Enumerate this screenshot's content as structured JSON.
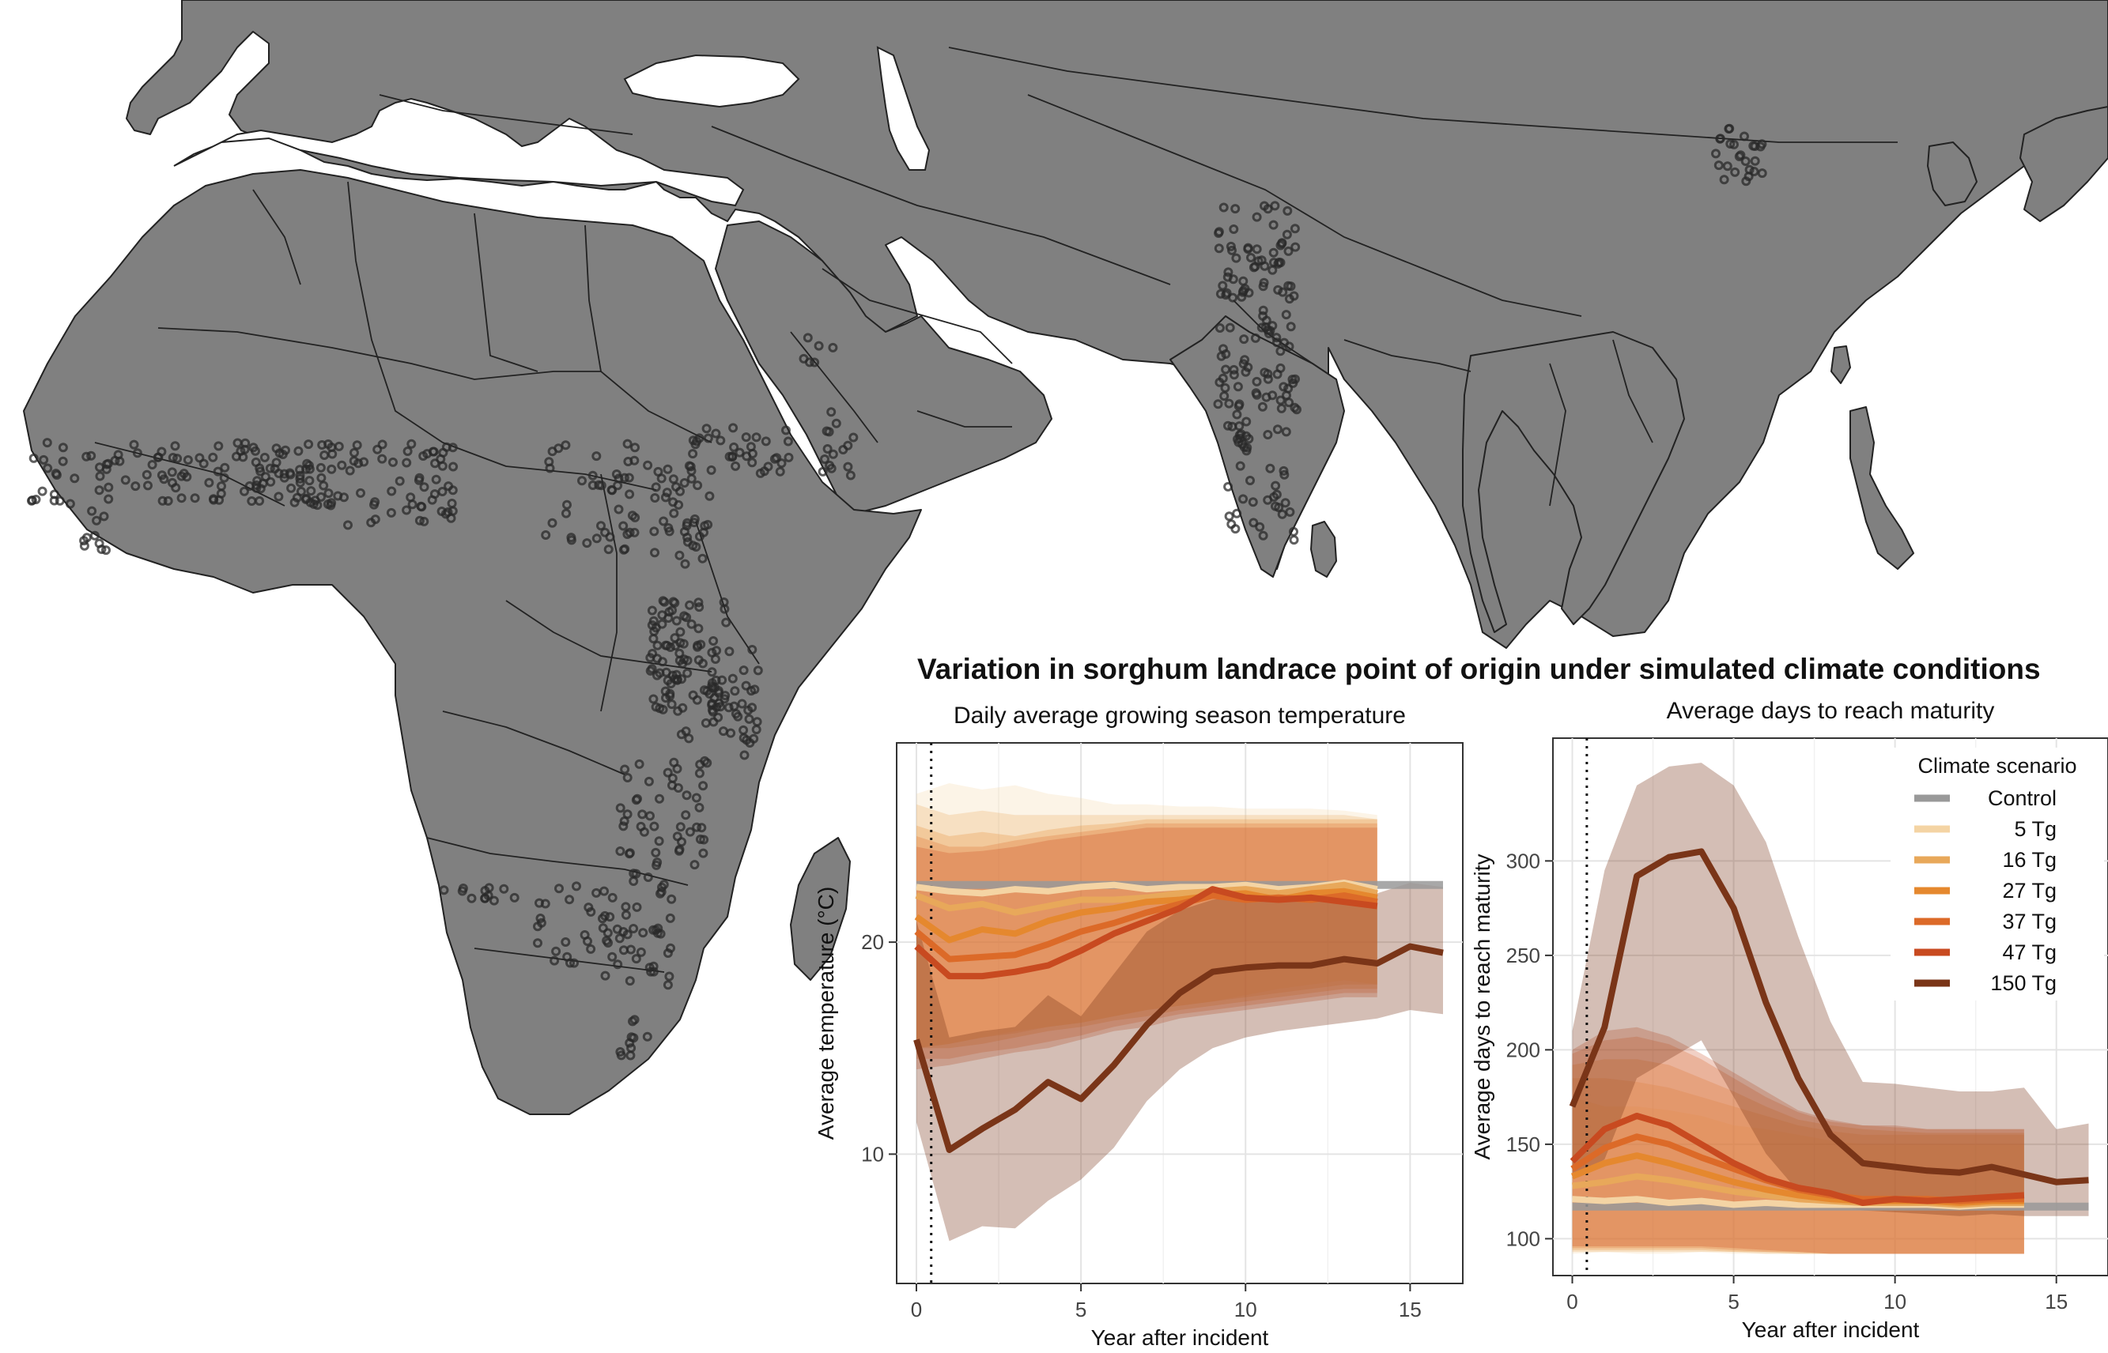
{
  "figure": {
    "title": "Variation in sorghum landrace point of origin under simulated climate conditions",
    "map": {
      "land_color": "#808080",
      "ocean_color": "#ffffff",
      "point_color": "#2a2a2a"
    }
  },
  "chart_data": [
    {
      "type": "line",
      "title": "Daily average growing season temperature",
      "xlabel": "Year after incident",
      "ylabel": "Average temperature (°C)",
      "xlim": [
        -0.6,
        16.6
      ],
      "ylim": [
        3.9,
        29.4
      ],
      "x_ticks": [
        0,
        5,
        10,
        15
      ],
      "y_ticks": [
        10,
        20
      ],
      "reference_line_x": 0.45,
      "grid": true,
      "series": [
        {
          "name": "Control",
          "color": "#999999",
          "x": [
            0,
            16
          ],
          "y": [
            22.7,
            22.7
          ],
          "lo": [
            22.5,
            22.5
          ],
          "hi": [
            23.0,
            23.0
          ]
        },
        {
          "name": "5 Tg",
          "color": "#f4d4a4",
          "x": [
            0,
            1,
            2,
            3,
            4,
            5,
            6,
            7,
            8,
            9,
            10,
            11,
            12,
            13,
            14
          ],
          "y": [
            22.6,
            22.4,
            22.3,
            22.5,
            22.4,
            22.6,
            22.7,
            22.5,
            22.6,
            22.6,
            22.7,
            22.5,
            22.6,
            22.8,
            22.5
          ],
          "lo": [
            15.0,
            15.2,
            15.5,
            15.8,
            16.0,
            16.2,
            16.5,
            16.8,
            17.0,
            17.2,
            17.5,
            17.8,
            18.0,
            18.2,
            18.0
          ],
          "hi": [
            27.0,
            27.5,
            27.2,
            27.4,
            27.0,
            26.8,
            26.5,
            26.5,
            26.4,
            26.4,
            26.3,
            26.3,
            26.3,
            26.2,
            26.0
          ]
        },
        {
          "name": "16 Tg",
          "color": "#e8a85a",
          "x": [
            0,
            1,
            2,
            3,
            4,
            5,
            6,
            7,
            8,
            9,
            10,
            11,
            12,
            13,
            14
          ],
          "y": [
            22.2,
            21.6,
            21.8,
            21.4,
            21.7,
            22.0,
            22.0,
            22.1,
            22.3,
            22.4,
            22.5,
            22.3,
            22.5,
            22.7,
            22.3
          ],
          "lo": [
            15.0,
            15.2,
            15.5,
            15.7,
            16.0,
            16.2,
            16.5,
            16.8,
            17.0,
            17.2,
            17.4,
            17.6,
            17.8,
            18.0,
            18.0
          ],
          "hi": [
            26.5,
            26.0,
            26.2,
            26.0,
            26.0,
            26.0,
            26.0,
            26.0,
            26.0,
            26.0,
            26.0,
            26.0,
            26.0,
            26.0,
            25.8
          ]
        },
        {
          "name": "27 Tg",
          "color": "#e5882e",
          "x": [
            0,
            1,
            2,
            3,
            4,
            5,
            6,
            7,
            8,
            9,
            10,
            11,
            12,
            13,
            14
          ],
          "y": [
            21.2,
            20.1,
            20.6,
            20.4,
            21.0,
            21.4,
            21.6,
            21.9,
            22.0,
            22.2,
            22.3,
            22.0,
            22.3,
            22.4,
            22.1
          ],
          "lo": [
            15.0,
            15.0,
            15.2,
            15.5,
            15.8,
            16.0,
            16.3,
            16.5,
            16.8,
            17.0,
            17.2,
            17.4,
            17.6,
            17.8,
            17.8
          ],
          "hi": [
            25.5,
            25.0,
            25.2,
            25.0,
            25.3,
            25.5,
            25.6,
            25.8,
            25.8,
            25.8,
            25.8,
            25.8,
            25.8,
            25.8,
            25.8
          ]
        },
        {
          "name": "37 Tg",
          "color": "#dc6a28",
          "x": [
            0,
            1,
            2,
            3,
            4,
            5,
            6,
            7,
            8,
            9,
            10,
            11,
            12,
            13,
            14
          ],
          "y": [
            20.5,
            19.2,
            19.3,
            19.4,
            19.9,
            20.5,
            20.9,
            21.4,
            21.8,
            22.2,
            22.0,
            22.1,
            22.0,
            22.2,
            21.9
          ],
          "lo": [
            14.5,
            14.5,
            14.8,
            15.0,
            15.3,
            15.6,
            16.0,
            16.3,
            16.6,
            16.8,
            17.0,
            17.2,
            17.4,
            17.6,
            17.6
          ],
          "hi": [
            25.0,
            24.5,
            24.5,
            24.8,
            25.0,
            25.2,
            25.4,
            25.6,
            25.6,
            25.6,
            25.6,
            25.6,
            25.6,
            25.6,
            25.6
          ]
        },
        {
          "name": "47 Tg",
          "color": "#c84a20",
          "x": [
            0,
            1,
            2,
            3,
            4,
            5,
            6,
            7,
            8,
            9,
            10,
            11,
            12,
            13,
            14
          ],
          "y": [
            19.8,
            18.4,
            18.4,
            18.6,
            18.9,
            19.6,
            20.4,
            21.0,
            21.6,
            22.5,
            22.1,
            22.0,
            22.1,
            21.9,
            21.7
          ],
          "lo": [
            14.0,
            14.2,
            14.5,
            14.8,
            15.0,
            15.4,
            15.8,
            16.0,
            16.4,
            16.6,
            16.8,
            17.0,
            17.2,
            17.4,
            17.4
          ],
          "hi": [
            24.5,
            24.2,
            24.3,
            24.5,
            24.8,
            25.0,
            25.2,
            25.4,
            25.4,
            25.4,
            25.4,
            25.4,
            25.4,
            25.4,
            25.4
          ]
        },
        {
          "name": "150 Tg",
          "color": "#7a3518",
          "x": [
            0,
            1,
            2,
            3,
            4,
            5,
            6,
            7,
            8,
            9,
            10,
            11,
            12,
            13,
            14,
            15,
            16
          ],
          "y": [
            15.4,
            10.2,
            11.2,
            12.1,
            13.4,
            12.6,
            14.2,
            16.1,
            17.6,
            18.6,
            18.8,
            18.9,
            18.9,
            19.2,
            19.0,
            19.8,
            19.5
          ],
          "lo": [
            11.5,
            5.9,
            6.6,
            6.5,
            7.8,
            8.8,
            10.3,
            12.5,
            14.0,
            15.0,
            15.5,
            15.8,
            16.0,
            16.2,
            16.4,
            16.8,
            16.6
          ],
          "hi": [
            21.0,
            15.5,
            15.8,
            16.0,
            17.5,
            16.5,
            18.5,
            20.5,
            21.5,
            22.0,
            22.2,
            22.3,
            22.3,
            22.4,
            22.3,
            22.8,
            22.6
          ]
        }
      ]
    },
    {
      "type": "line",
      "title": "Average days to reach maturity",
      "xlabel": "Year after incident",
      "ylabel": "Average days to reach maturity",
      "xlim": [
        -0.6,
        16.6
      ],
      "ylim": [
        80.5,
        365
      ],
      "x_ticks": [
        0,
        5,
        10,
        15
      ],
      "y_ticks": [
        100,
        150,
        200,
        250,
        300
      ],
      "reference_line_x": 0.45,
      "grid": true,
      "legend": {
        "title": "Climate scenario",
        "position": "top-right",
        "entries": [
          "Control",
          "5 Tg",
          "16 Tg",
          "27 Tg",
          "37 Tg",
          "47 Tg",
          "150 Tg"
        ]
      },
      "series": [
        {
          "name": "Control",
          "color": "#999999",
          "x": [
            0,
            16
          ],
          "y": [
            117,
            117
          ],
          "lo": [
            115,
            115
          ],
          "hi": [
            120,
            120
          ]
        },
        {
          "name": "5 Tg",
          "color": "#f4d4a4",
          "x": [
            0,
            1,
            2,
            3,
            4,
            5,
            6,
            7,
            8,
            9,
            10,
            11,
            12,
            13,
            14
          ],
          "y": [
            121,
            120,
            121,
            119,
            120,
            118,
            119,
            118,
            118,
            118,
            118,
            118,
            117,
            118,
            118
          ],
          "lo": [
            92,
            93,
            92,
            92,
            93,
            92,
            92,
            92,
            92,
            92,
            92,
            92,
            92,
            92,
            92
          ],
          "hi": [
            175,
            170,
            170,
            168,
            165,
            160,
            158,
            155,
            152,
            150,
            150,
            150,
            150,
            150,
            150
          ]
        },
        {
          "name": "16 Tg",
          "color": "#e8a85a",
          "x": [
            0,
            1,
            2,
            3,
            4,
            5,
            6,
            7,
            8,
            9,
            10,
            11,
            12,
            13,
            14
          ],
          "y": [
            128,
            130,
            133,
            131,
            128,
            125,
            123,
            121,
            120,
            119,
            119,
            119,
            118,
            119,
            119
          ],
          "lo": [
            93,
            93,
            93,
            93,
            93,
            93,
            92,
            92,
            92,
            92,
            92,
            92,
            92,
            92,
            92
          ],
          "hi": [
            185,
            185,
            183,
            180,
            175,
            170,
            165,
            160,
            157,
            155,
            155,
            155,
            155,
            155,
            155
          ]
        },
        {
          "name": "27 Tg",
          "color": "#e5882e",
          "x": [
            0,
            1,
            2,
            3,
            4,
            5,
            6,
            7,
            8,
            9,
            10,
            11,
            12,
            13,
            14
          ],
          "y": [
            133,
            140,
            144,
            140,
            135,
            130,
            126,
            123,
            121,
            120,
            120,
            120,
            119,
            120,
            120
          ],
          "lo": [
            94,
            94,
            94,
            94,
            94,
            93,
            93,
            92,
            92,
            92,
            92,
            92,
            92,
            92,
            92
          ],
          "hi": [
            192,
            195,
            195,
            192,
            185,
            178,
            170,
            163,
            160,
            158,
            157,
            156,
            156,
            156,
            156
          ]
        },
        {
          "name": "37 Tg",
          "color": "#dc6a28",
          "x": [
            0,
            1,
            2,
            3,
            4,
            5,
            6,
            7,
            8,
            9,
            10,
            11,
            12,
            13,
            14
          ],
          "y": [
            137,
            148,
            154,
            150,
            143,
            137,
            131,
            126,
            123,
            121,
            121,
            121,
            120,
            121,
            121
          ],
          "lo": [
            95,
            95,
            95,
            95,
            95,
            94,
            93,
            93,
            92,
            92,
            92,
            92,
            92,
            92,
            92
          ],
          "hi": [
            198,
            205,
            207,
            203,
            195,
            185,
            175,
            167,
            162,
            160,
            159,
            158,
            158,
            158,
            158
          ]
        },
        {
          "name": "47 Tg",
          "color": "#c84a20",
          "x": [
            0,
            1,
            2,
            3,
            4,
            5,
            6,
            7,
            8,
            9,
            10,
            11,
            12,
            13,
            14
          ],
          "y": [
            141,
            158,
            165,
            160,
            150,
            140,
            132,
            127,
            124,
            119,
            121,
            120,
            121,
            122,
            123
          ],
          "lo": [
            96,
            96,
            96,
            96,
            96,
            95,
            94,
            93,
            92,
            92,
            92,
            92,
            92,
            92,
            92
          ],
          "hi": [
            200,
            210,
            212,
            207,
            198,
            188,
            178,
            168,
            163,
            160,
            160,
            158,
            158,
            158,
            158
          ]
        },
        {
          "name": "150 Tg",
          "color": "#7a3518",
          "x": [
            0,
            1,
            2,
            3,
            4,
            5,
            6,
            7,
            8,
            9,
            10,
            11,
            12,
            13,
            14,
            15,
            16
          ],
          "y": [
            170,
            212,
            292,
            302,
            305,
            275,
            225,
            185,
            155,
            140,
            138,
            136,
            135,
            138,
            134,
            130,
            131
          ],
          "lo": [
            132,
            142,
            185,
            195,
            205,
            175,
            145,
            125,
            118,
            115,
            114,
            113,
            112,
            113,
            112,
            112,
            112
          ],
          "hi": [
            210,
            295,
            340,
            350,
            352,
            340,
            310,
            260,
            215,
            183,
            182,
            180,
            178,
            178,
            180,
            158,
            161
          ]
        }
      ]
    }
  ]
}
